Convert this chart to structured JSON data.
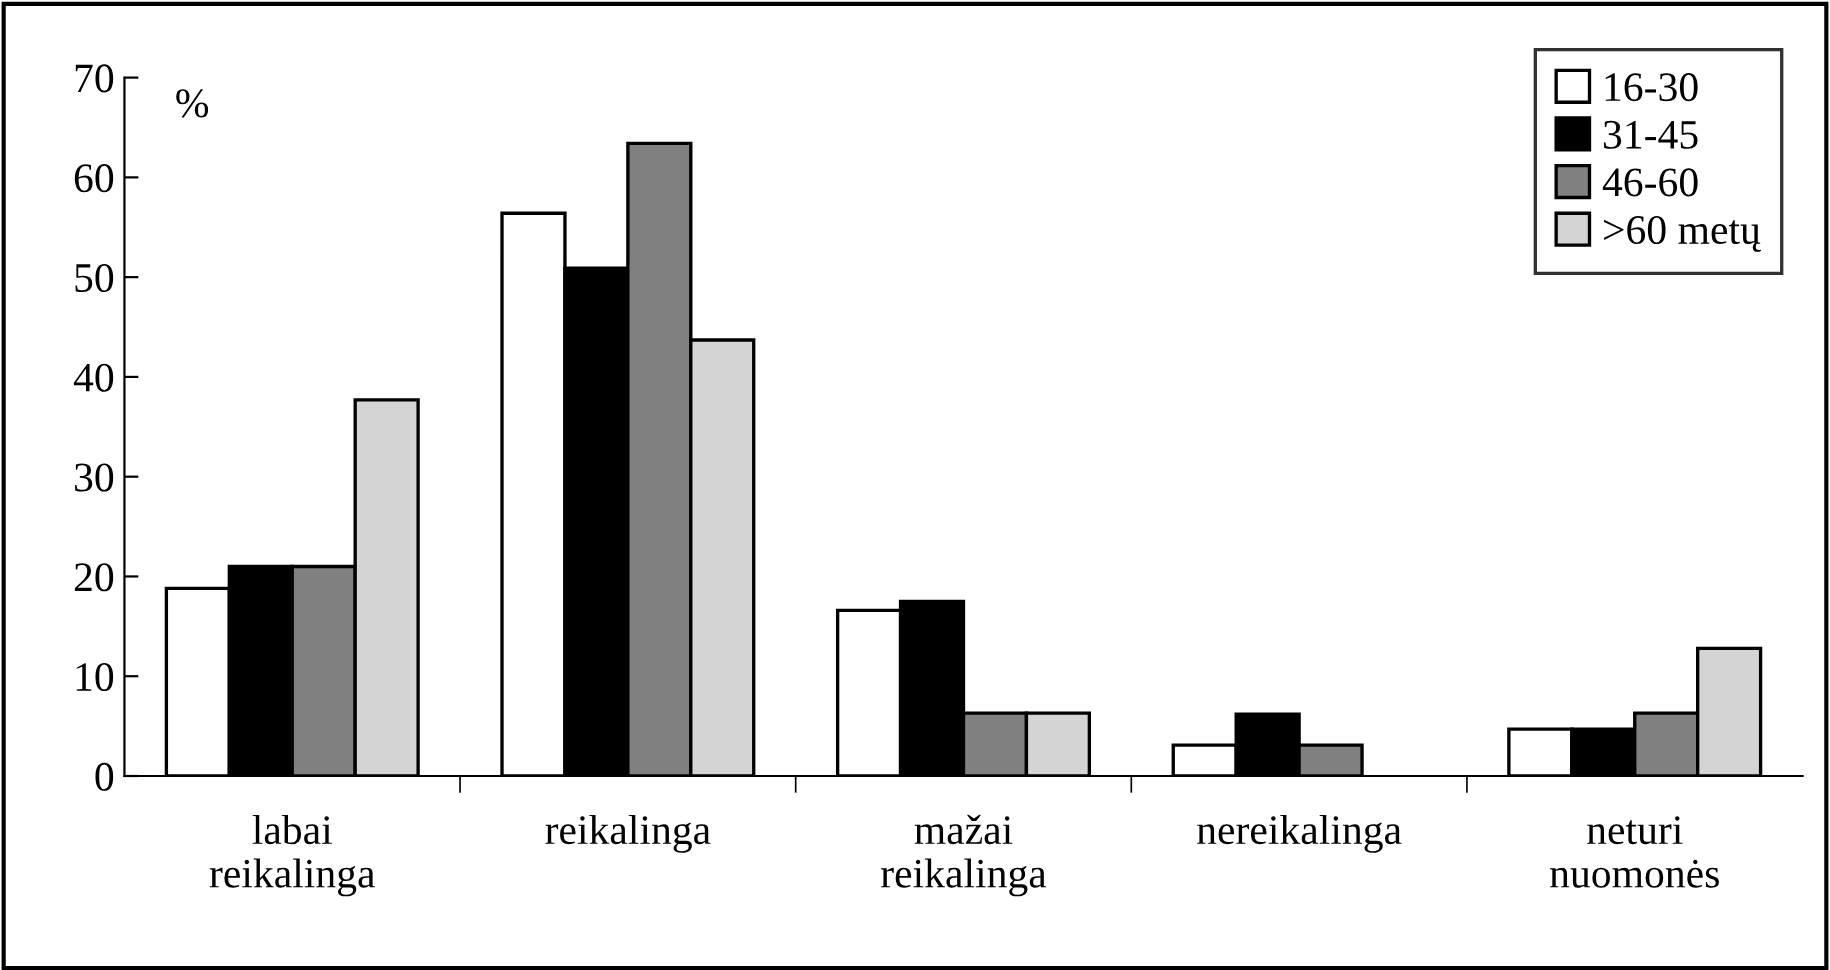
{
  "chart_data": {
    "type": "bar",
    "ylabel": "%",
    "categories": [
      "labai\nreikalinga",
      "reikalinga",
      "mažai\nreikalinga",
      "nereikalinga",
      "neturi\nnuomonės"
    ],
    "series": [
      {
        "name": "16-30",
        "color": "#ffffff",
        "values": [
          18.8,
          56.4,
          16.6,
          3.1,
          4.7
        ]
      },
      {
        "name": "31-45",
        "color": "#000000",
        "values": [
          21.0,
          50.9,
          17.5,
          6.2,
          4.7
        ]
      },
      {
        "name": "46-60",
        "color": "#808080",
        "values": [
          21.0,
          63.4,
          6.3,
          3.1,
          6.3
        ]
      },
      {
        "name": ">60 metų",
        "color": "#d4d4d4",
        "values": [
          37.7,
          43.7,
          6.3,
          null,
          12.8
        ]
      }
    ],
    "ylim": [
      0,
      70
    ],
    "yticks": [
      0,
      10,
      20,
      30,
      40,
      50,
      60,
      70
    ],
    "grid": false,
    "legend": "top right"
  }
}
